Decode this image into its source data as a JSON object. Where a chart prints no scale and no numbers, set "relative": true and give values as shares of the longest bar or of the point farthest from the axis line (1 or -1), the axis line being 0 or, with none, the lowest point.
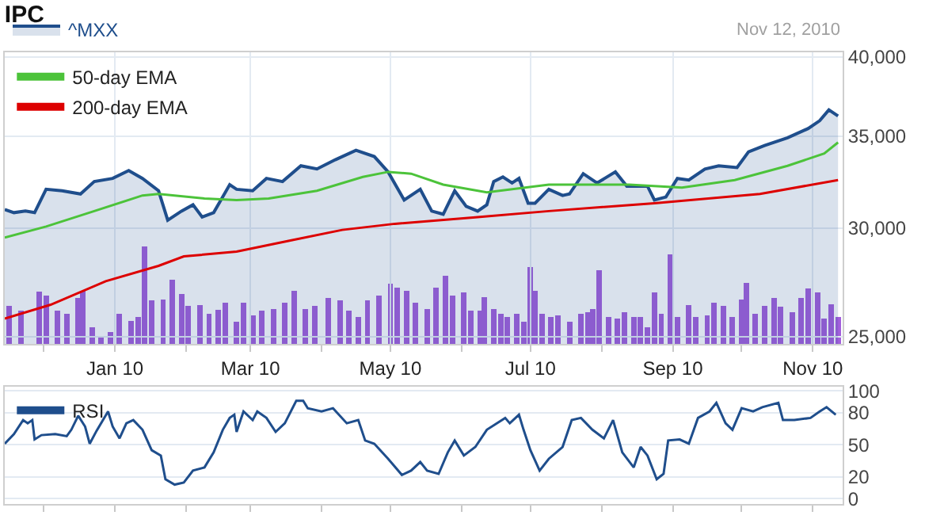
{
  "chart_data": [
    {
      "type": "line",
      "title": "IPC",
      "log": true,
      "grid": true,
      "legend": "top left",
      "annotations": [
        "Nov 12, 2010"
      ],
      "xlim": [
        "2009-11-14",
        "2010-11-14"
      ],
      "xticks": [
        {
          "value": "2009-12-01",
          "label": null
        },
        {
          "value": "2010-01-01",
          "label": "Jan 10"
        },
        {
          "value": "2010-02-01",
          "label": null
        },
        {
          "value": "2010-03-01",
          "label": "Mar 10"
        },
        {
          "value": "2010-04-01",
          "label": null
        },
        {
          "value": "2010-05-01",
          "label": "May 10"
        },
        {
          "value": "2010-06-01",
          "label": null
        },
        {
          "value": "2010-07-01",
          "label": "Jul 10"
        },
        {
          "value": "2010-08-01",
          "label": null
        },
        {
          "value": "2010-09-01",
          "label": "Sep 10"
        },
        {
          "value": "2010-10-01",
          "label": null
        },
        {
          "value": "2010-11-01",
          "label": "Nov 10"
        }
      ],
      "ylim": [
        24700,
        40300
      ],
      "yticks": [
        {
          "value": 25000,
          "label": "25,000"
        },
        {
          "value": 30000,
          "label": "30,000"
        },
        {
          "value": 35000,
          "label": "35,000"
        },
        {
          "value": 40000,
          "label": "40,000"
        }
      ],
      "series": [
        {
          "name": "^MXX",
          "type": "area",
          "color": "#1f4e8c",
          "x": [
            "2009-11-14",
            "2009-11-18",
            "2009-11-23",
            "2009-11-27",
            "2009-12-02",
            "2009-12-09",
            "2009-12-17",
            "2009-12-23",
            "2009-12-31",
            "2010-01-07",
            "2010-01-13",
            "2010-01-20",
            "2010-01-24",
            "2010-01-30",
            "2010-02-04",
            "2010-02-08",
            "2010-02-13",
            "2010-02-20",
            "2010-02-23",
            "2010-03-02",
            "2010-03-08",
            "2010-03-15",
            "2010-03-23",
            "2010-03-30",
            "2010-04-07",
            "2010-04-16",
            "2010-04-24",
            "2010-04-30",
            "2010-05-07",
            "2010-05-14",
            "2010-05-19",
            "2010-05-24",
            "2010-05-29",
            "2010-06-03",
            "2010-06-08",
            "2010-06-12",
            "2010-06-15",
            "2010-06-19",
            "2010-06-23",
            "2010-06-26",
            "2010-06-30",
            "2010-07-03",
            "2010-07-09",
            "2010-07-15",
            "2010-07-18",
            "2010-07-24",
            "2010-07-30",
            "2010-08-07",
            "2010-08-12",
            "2010-08-21",
            "2010-08-24",
            "2010-08-29",
            "2010-09-03",
            "2010-09-08",
            "2010-09-15",
            "2010-09-21",
            "2010-09-29",
            "2010-10-04",
            "2010-10-11",
            "2010-10-21",
            "2010-10-30",
            "2010-11-04",
            "2010-11-08",
            "2010-11-12"
          ],
          "values": [
            30950,
            30790,
            30870,
            30790,
            32020,
            31940,
            31770,
            32440,
            32610,
            33040,
            32610,
            31940,
            30400,
            30870,
            31200,
            30560,
            30790,
            32270,
            32020,
            31940,
            32610,
            32440,
            33310,
            33130,
            33650,
            34190,
            33830,
            32970,
            31450,
            32020,
            30870,
            30710,
            31940,
            31120,
            30870,
            31200,
            32440,
            32690,
            32360,
            32610,
            31280,
            31280,
            32020,
            31690,
            31770,
            32870,
            32360,
            32970,
            32190,
            32190,
            31450,
            31610,
            32610,
            32520,
            33130,
            33310,
            33210,
            34100,
            34460,
            34910,
            35460,
            35930,
            36590,
            36210
          ]
        },
        {
          "name": "50-day EMA",
          "color": "#4cc33a",
          "x": [
            "2009-11-14",
            "2009-12-02",
            "2009-12-23",
            "2010-01-13",
            "2010-01-20",
            "2010-02-09",
            "2010-02-23",
            "2010-03-09",
            "2010-03-30",
            "2010-04-19",
            "2010-04-30",
            "2010-05-10",
            "2010-05-24",
            "2010-06-12",
            "2010-07-09",
            "2010-08-13",
            "2010-09-05",
            "2010-09-28",
            "2010-10-21",
            "2010-11-06",
            "2010-11-12"
          ],
          "values": [
            29530,
            30080,
            30870,
            31690,
            31770,
            31530,
            31450,
            31530,
            31940,
            32690,
            32970,
            32870,
            32270,
            31860,
            32270,
            32270,
            32110,
            32520,
            33310,
            34000,
            34640
          ]
        },
        {
          "name": "200-day EMA",
          "color": "#dd0000",
          "x": [
            "2009-11-14",
            "2009-12-04",
            "2009-12-28",
            "2010-01-20",
            "2010-01-31",
            "2010-02-23",
            "2010-03-18",
            "2010-04-10",
            "2010-05-03",
            "2010-06-07",
            "2010-07-09",
            "2010-08-24",
            "2010-10-09",
            "2010-11-12"
          ],
          "values": [
            25770,
            26380,
            27440,
            28160,
            28610,
            28840,
            29370,
            29910,
            30220,
            30550,
            30870,
            31280,
            31770,
            32520
          ]
        }
      ]
    },
    {
      "type": "bar",
      "relative": true,
      "tick_labels": false,
      "color": "#a35fdc",
      "xlim": [
        "2009-11-14",
        "2010-11-14"
      ],
      "x": [
        "2009-11-16",
        "2009-11-21",
        "2009-11-29",
        "2009-12-02",
        "2009-12-07",
        "2009-12-11",
        "2009-12-16",
        "2009-12-18",
        "2009-12-22",
        "2009-12-26",
        "2009-12-30",
        "2010-01-03",
        "2010-01-08",
        "2010-01-11",
        "2010-01-14",
        "2010-01-17",
        "2010-01-22",
        "2010-01-26",
        "2010-01-30",
        "2010-02-02",
        "2010-02-07",
        "2010-02-11",
        "2010-02-15",
        "2010-02-18",
        "2010-02-23",
        "2010-02-26",
        "2010-03-02",
        "2010-03-06",
        "2010-03-11",
        "2010-03-16",
        "2010-03-20",
        "2010-03-25",
        "2010-03-29",
        "2010-04-04",
        "2010-04-09",
        "2010-04-13",
        "2010-04-17",
        "2010-04-21",
        "2010-04-26",
        "2010-05-01",
        "2010-05-04",
        "2010-05-08",
        "2010-05-12",
        "2010-05-17",
        "2010-05-21",
        "2010-05-25",
        "2010-05-28",
        "2010-06-02",
        "2010-06-05",
        "2010-06-09",
        "2010-06-11",
        "2010-06-15",
        "2010-06-18",
        "2010-06-21",
        "2010-06-25",
        "2010-06-28",
        "2010-07-01",
        "2010-07-03",
        "2010-07-06",
        "2010-07-10",
        "2010-07-13",
        "2010-07-18",
        "2010-07-23",
        "2010-07-26",
        "2010-07-28",
        "2010-07-31",
        "2010-08-04",
        "2010-08-08",
        "2010-08-11",
        "2010-08-15",
        "2010-08-18",
        "2010-08-21",
        "2010-08-24",
        "2010-08-27",
        "2010-08-31",
        "2010-09-03",
        "2010-09-08",
        "2010-09-11",
        "2010-09-16",
        "2010-09-19",
        "2010-09-23",
        "2010-09-27",
        "2010-10-01",
        "2010-10-03",
        "2010-10-07",
        "2010-10-11",
        "2010-10-15",
        "2010-10-18",
        "2010-10-23",
        "2010-10-27",
        "2010-10-30",
        "2010-11-03",
        "2010-11-06",
        "2010-11-09",
        "2010-11-12"
      ],
      "values": [
        0.39,
        0.34,
        0.54,
        0.5,
        0.34,
        0.31,
        0.47,
        0.55,
        0.17,
        0.07,
        0.12,
        0.31,
        0.24,
        0.28,
        1,
        0.45,
        0.46,
        0.66,
        0.51,
        0.39,
        0.4,
        0.31,
        0.35,
        0.42,
        0.23,
        0.42,
        0.29,
        0.34,
        0.36,
        0.42,
        0.55,
        0.36,
        0.39,
        0.47,
        0.45,
        0.34,
        0.28,
        0.45,
        0.5,
        0.62,
        0.58,
        0.55,
        0.42,
        0.36,
        0.58,
        0.7,
        0.5,
        0.53,
        0.34,
        0.34,
        0.48,
        0.36,
        0.31,
        0.28,
        0.31,
        0.23,
        0.79,
        0.55,
        0.31,
        0.28,
        0.29,
        0.23,
        0.31,
        0.33,
        0.36,
        0.76,
        0.28,
        0.26,
        0.33,
        0.28,
        0.28,
        0.17,
        0.53,
        0.31,
        0.92,
        0.28,
        0.4,
        0.28,
        0.29,
        0.42,
        0.39,
        0.28,
        0.46,
        0.63,
        0.31,
        0.39,
        0.47,
        0.38,
        0.33,
        0.47,
        0.57,
        0.53,
        0.26,
        0.41,
        0.28
      ]
    },
    {
      "type": "line",
      "grid": true,
      "legend": "top left",
      "tick_labels": "y",
      "xlim": [
        "2009-11-14",
        "2010-11-14"
      ],
      "xticks": [
        {
          "value": "2009-12-01",
          "label": null
        },
        {
          "value": "2010-01-01",
          "label": null
        },
        {
          "value": "2010-02-01",
          "label": null
        },
        {
          "value": "2010-03-01",
          "label": null
        },
        {
          "value": "2010-04-01",
          "label": null
        },
        {
          "value": "2010-05-01",
          "label": null
        },
        {
          "value": "2010-06-01",
          "label": null
        },
        {
          "value": "2010-07-01",
          "label": null
        },
        {
          "value": "2010-08-01",
          "label": null
        },
        {
          "value": "2010-09-01",
          "label": null
        },
        {
          "value": "2010-10-01",
          "label": null
        },
        {
          "value": "2010-11-01",
          "label": null
        }
      ],
      "ylim": [
        -5,
        104
      ],
      "yticks": [
        0,
        20,
        50,
        80,
        100
      ],
      "series": [
        {
          "name": "RSI",
          "color": "#1f4e8c",
          "x": [
            "2009-11-14",
            "2009-11-18",
            "2009-11-22",
            "2009-11-24",
            "2009-11-26",
            "2009-11-27",
            "2009-11-30",
            "2009-12-06",
            "2009-12-11",
            "2009-12-13",
            "2009-12-16",
            "2009-12-19",
            "2009-12-21",
            "2009-12-24",
            "2009-12-29",
            "2009-12-31",
            "2010-01-03",
            "2010-01-06",
            "2010-01-09",
            "2010-01-13",
            "2010-01-17",
            "2010-01-21",
            "2010-01-23",
            "2010-01-27",
            "2010-01-31",
            "2010-02-04",
            "2010-02-09",
            "2010-02-13",
            "2010-02-17",
            "2010-02-20",
            "2010-02-22",
            "2010-02-23",
            "2010-02-26",
            "2010-03-02",
            "2010-03-04",
            "2010-03-08",
            "2010-03-12",
            "2010-03-16",
            "2010-03-21",
            "2010-03-24",
            "2010-03-26",
            "2010-04-01",
            "2010-04-06",
            "2010-04-12",
            "2010-04-17",
            "2010-04-20",
            "2010-04-24",
            "2010-04-30",
            "2010-05-06",
            "2010-05-10",
            "2010-05-14",
            "2010-05-17",
            "2010-05-22",
            "2010-05-26",
            "2010-05-29",
            "2010-06-02",
            "2010-06-07",
            "2010-06-12",
            "2010-06-20",
            "2010-06-22",
            "2010-06-26",
            "2010-06-28",
            "2010-07-01",
            "2010-07-05",
            "2010-07-09",
            "2010-07-15",
            "2010-07-19",
            "2010-07-23",
            "2010-07-28",
            "2010-08-02",
            "2010-08-06",
            "2010-08-10",
            "2010-08-15",
            "2010-08-18",
            "2010-08-21",
            "2010-08-25",
            "2010-08-28",
            "2010-08-30",
            "2010-09-04",
            "2010-09-08",
            "2010-09-12",
            "2010-09-17",
            "2010-09-20",
            "2010-09-24",
            "2010-09-27",
            "2010-10-01",
            "2010-10-06",
            "2010-10-10",
            "2010-10-17",
            "2010-10-19",
            "2010-10-24",
            "2010-10-31",
            "2010-11-04",
            "2010-11-07",
            "2010-11-11"
          ],
          "values": [
            51,
            60,
            73,
            70,
            73,
            55,
            59,
            60,
            58,
            64,
            77,
            67,
            51,
            63,
            81,
            67,
            56,
            70,
            73,
            64,
            45,
            40,
            18,
            13,
            15,
            26,
            29,
            43,
            64,
            75,
            78,
            62,
            81,
            73,
            81,
            75,
            62,
            70,
            91,
            91,
            84,
            81,
            84,
            70,
            73,
            54,
            51,
            37,
            22,
            26,
            34,
            26,
            23,
            43,
            54,
            40,
            48,
            64,
            75,
            70,
            78,
            64,
            45,
            26,
            37,
            48,
            73,
            75,
            64,
            56,
            73,
            43,
            29,
            48,
            40,
            18,
            23,
            54,
            55,
            51,
            75,
            81,
            89,
            70,
            64,
            84,
            81,
            85,
            89,
            73,
            73,
            75,
            81,
            85,
            78
          ]
        }
      ]
    }
  ]
}
